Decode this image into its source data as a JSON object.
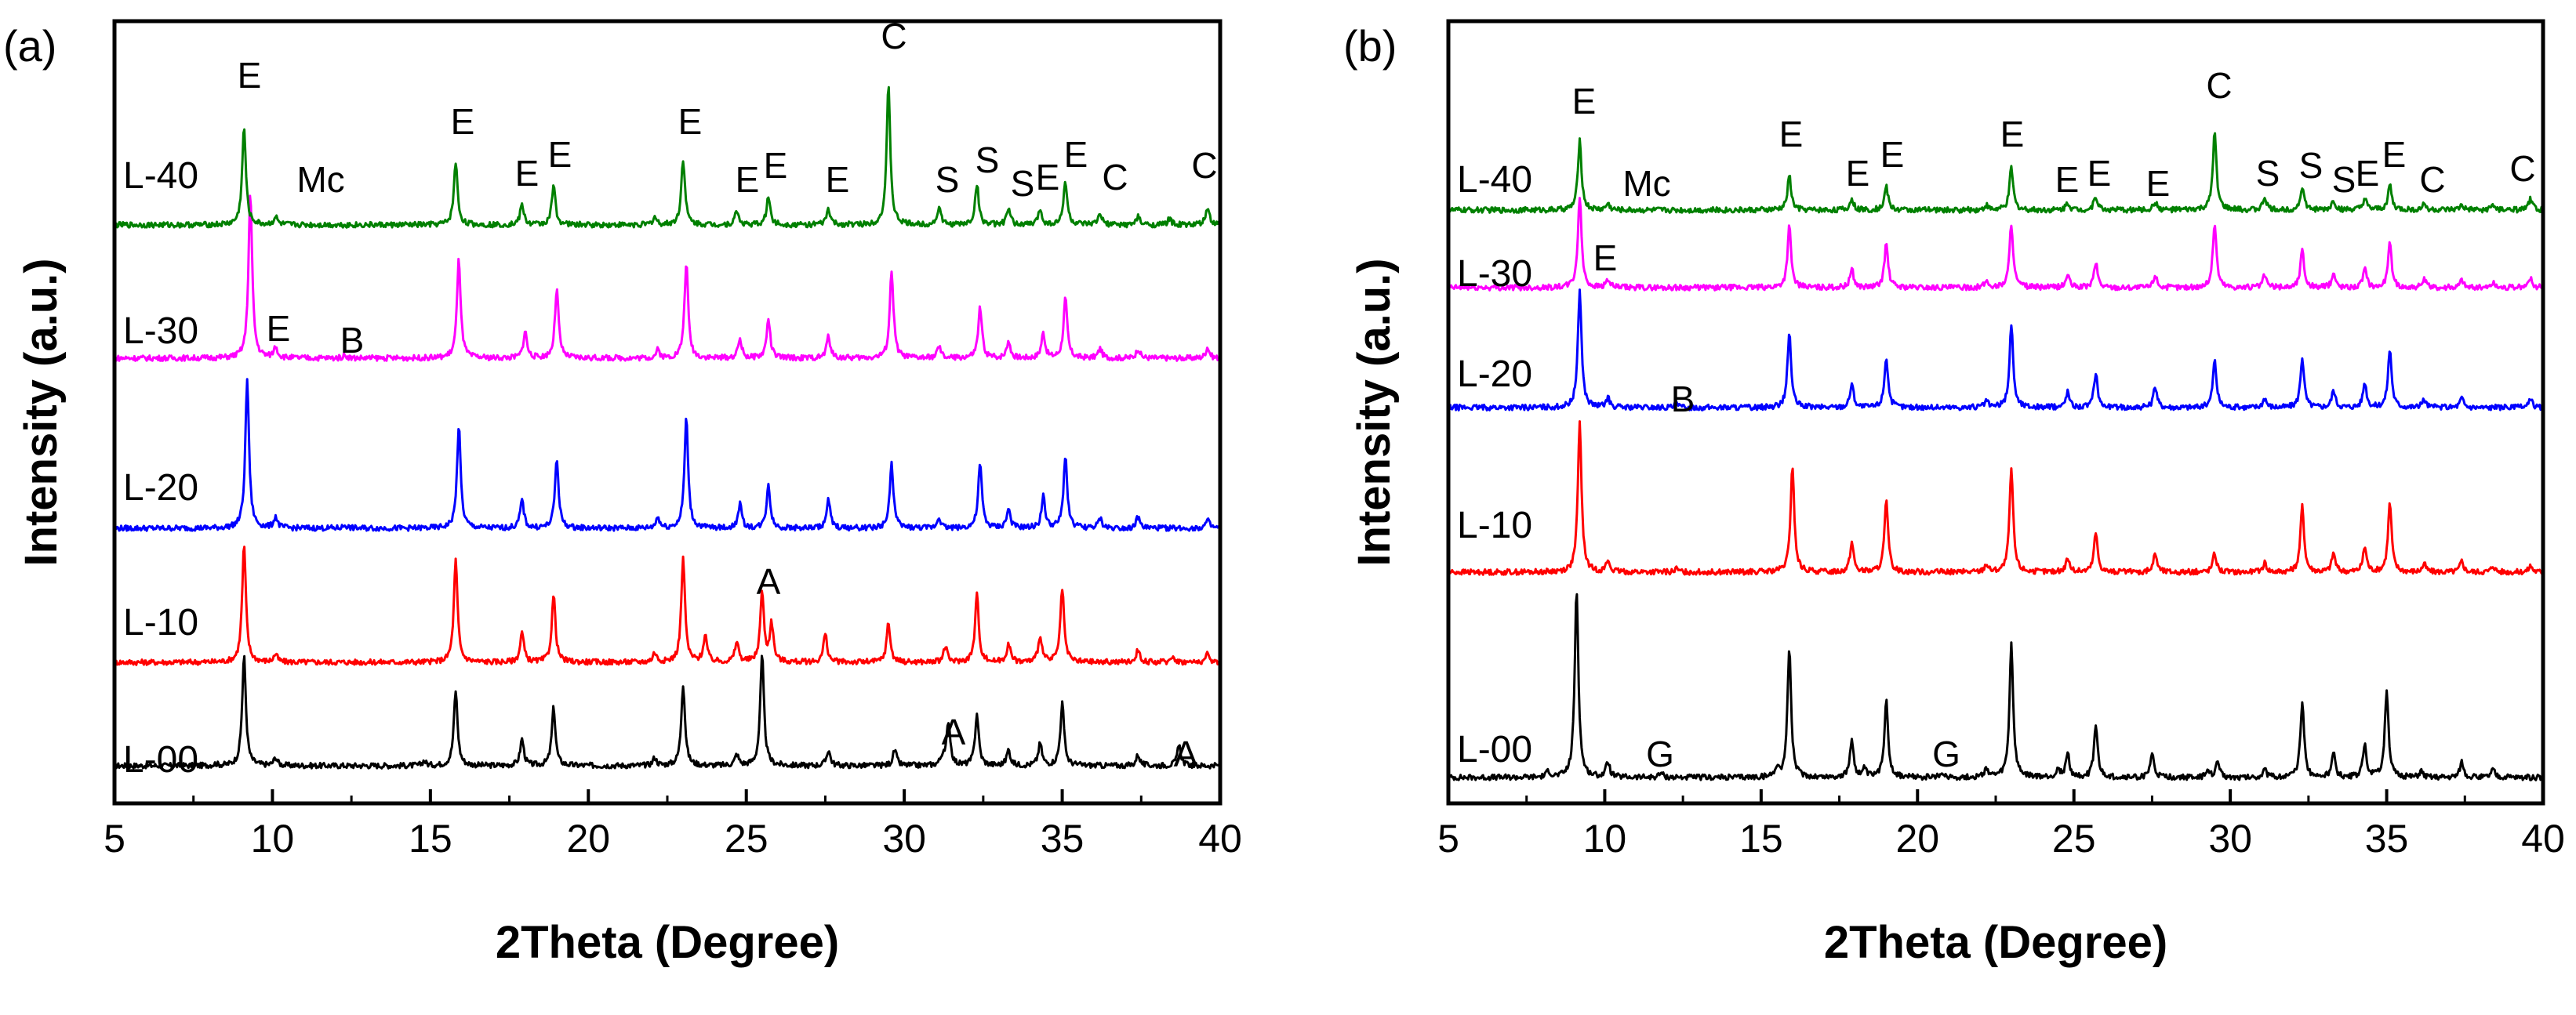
{
  "chart_data": [
    {
      "type": "line",
      "panel_label": "(a)",
      "xlabel": "2Theta (Degree)",
      "ylabel": "Intensity (a.u.)",
      "xlim": [
        5,
        40
      ],
      "x_ticks": [
        5,
        10,
        15,
        20,
        25,
        30,
        35,
        40
      ],
      "y_ticks": false,
      "grid": false,
      "legend": "none",
      "series": [
        {
          "name": "L-00",
          "color": "#000000",
          "baseline": 0.4,
          "peaks": [
            [
              8.2,
              0.1
            ],
            [
              9.1,
              7.0
            ],
            [
              10.1,
              0.5
            ],
            [
              14.8,
              0.3
            ],
            [
              15.8,
              4.8
            ],
            [
              17.9,
              1.7
            ],
            [
              18.9,
              3.7
            ],
            [
              22.1,
              0.5
            ],
            [
              23.0,
              5.2
            ],
            [
              24.7,
              0.7
            ],
            [
              25.5,
              7.0
            ],
            [
              27.6,
              1.0
            ],
            [
              29.7,
              1.0
            ],
            [
              31.2,
              0.5
            ],
            [
              31.4,
              2.8
            ],
            [
              32.3,
              3.3
            ],
            [
              33.3,
              1.0
            ],
            [
              34.3,
              1.4
            ],
            [
              35.0,
              4.0
            ],
            [
              37.4,
              0.7
            ],
            [
              38.7,
              1.3
            ]
          ]
        },
        {
          "name": "L-10",
          "color": "#ff0000",
          "baseline": 0.4,
          "peaks": [
            [
              9.1,
              7.5
            ],
            [
              10.1,
              0.5
            ],
            [
              15.8,
              6.5
            ],
            [
              17.9,
              1.9
            ],
            [
              18.9,
              4.3
            ],
            [
              22.1,
              0.6
            ],
            [
              23.0,
              6.6
            ],
            [
              23.7,
              1.7
            ],
            [
              24.7,
              1.3
            ],
            [
              25.5,
              4.4
            ],
            [
              25.8,
              2.4
            ],
            [
              27.5,
              1.8
            ],
            [
              29.5,
              2.5
            ],
            [
              31.3,
              1.0
            ],
            [
              32.3,
              4.3
            ],
            [
              33.3,
              1.2
            ],
            [
              34.3,
              1.7
            ],
            [
              35.0,
              4.7
            ],
            [
              37.4,
              0.8
            ],
            [
              38.5,
              0.4
            ],
            [
              39.6,
              0.5
            ]
          ]
        },
        {
          "name": "L-20",
          "color": "#0000ff",
          "baseline": 0.4,
          "peaks": [
            [
              9.2,
              9.5
            ],
            [
              10.1,
              0.7
            ],
            [
              12.3,
              0.2
            ],
            [
              15.9,
              6.5
            ],
            [
              17.9,
              1.8
            ],
            [
              19.0,
              4.4
            ],
            [
              22.2,
              0.7
            ],
            [
              23.1,
              7.0
            ],
            [
              24.8,
              1.5
            ],
            [
              25.7,
              2.8
            ],
            [
              27.6,
              1.8
            ],
            [
              29.6,
              4.1
            ],
            [
              31.1,
              0.7
            ],
            [
              32.4,
              4.1
            ],
            [
              33.3,
              1.2
            ],
            [
              34.4,
              2.0
            ],
            [
              35.1,
              4.6
            ],
            [
              36.2,
              0.6
            ],
            [
              37.4,
              0.7
            ],
            [
              39.6,
              0.5
            ]
          ]
        },
        {
          "name": "L-30",
          "color": "#ff00ff",
          "baseline": 0.4,
          "peaks": [
            [
              9.3,
              10.5
            ],
            [
              10.1,
              0.7
            ],
            [
              12.3,
              0.2
            ],
            [
              15.9,
              6.3
            ],
            [
              18.0,
              1.7
            ],
            [
              19.0,
              4.4
            ],
            [
              22.2,
              0.5
            ],
            [
              23.1,
              6.1
            ],
            [
              24.8,
              1.2
            ],
            [
              25.7,
              2.5
            ],
            [
              27.6,
              1.4
            ],
            [
              29.6,
              5.6
            ],
            [
              31.1,
              0.7
            ],
            [
              32.4,
              3.2
            ],
            [
              33.3,
              1.1
            ],
            [
              34.4,
              1.6
            ],
            [
              35.1,
              3.8
            ],
            [
              36.2,
              0.6
            ],
            [
              37.4,
              0.6
            ],
            [
              39.6,
              0.7
            ]
          ]
        },
        {
          "name": "L-40",
          "color": "#008000",
          "baseline": 0.4,
          "peaks": [
            [
              9.1,
              6.2
            ],
            [
              10.1,
              0.5
            ],
            [
              15.8,
              4.0
            ],
            [
              17.9,
              1.3
            ],
            [
              18.9,
              2.5
            ],
            [
              22.1,
              0.5
            ],
            [
              23.0,
              4.2
            ],
            [
              24.7,
              0.9
            ],
            [
              25.7,
              1.8
            ],
            [
              27.6,
              1.0
            ],
            [
              29.5,
              8.8
            ],
            [
              31.1,
              1.1
            ],
            [
              32.3,
              2.6
            ],
            [
              33.3,
              1.0
            ],
            [
              34.3,
              1.0
            ],
            [
              35.1,
              2.8
            ],
            [
              36.2,
              0.7
            ],
            [
              37.4,
              0.5
            ],
            [
              38.4,
              0.4
            ],
            [
              39.6,
              1.1
            ]
          ]
        }
      ],
      "peak_labels": [
        "E",
        "Mc",
        "E",
        "E",
        "E",
        "E",
        "E",
        "E",
        "E",
        "C",
        "S",
        "S",
        "S",
        "E",
        "E",
        "C",
        "C",
        "E",
        "B",
        "A",
        "A",
        "A"
      ]
    },
    {
      "type": "line",
      "panel_label": "(b)",
      "xlabel": "2Theta (Degree)",
      "ylabel": "Intensity (a.u.)",
      "xlim": [
        5,
        40
      ],
      "x_ticks": [
        5,
        10,
        15,
        20,
        25,
        30,
        35,
        40
      ],
      "y_ticks": false,
      "grid": false,
      "legend": "none",
      "series": [
        {
          "name": "L-00",
          "color": "#000000",
          "baseline": 0.5,
          "peaks": [
            [
              8.2,
              0.4
            ],
            [
              9.1,
              12.0
            ],
            [
              10.1,
              1.0
            ],
            [
              11.8,
              0.3
            ],
            [
              15.5,
              0.6
            ],
            [
              15.9,
              8.3
            ],
            [
              17.9,
              2.4
            ],
            [
              18.3,
              0.5
            ],
            [
              19.0,
              5.0
            ],
            [
              20.8,
              0.3
            ],
            [
              22.2,
              0.6
            ],
            [
              23.0,
              8.5
            ],
            [
              24.5,
              0.5
            ],
            [
              24.8,
              1.5
            ],
            [
              25.7,
              3.3
            ],
            [
              27.5,
              1.5
            ],
            [
              29.3,
              0.4
            ],
            [
              29.6,
              1.0
            ],
            [
              31.1,
              0.5
            ],
            [
              32.3,
              4.8
            ],
            [
              33.3,
              1.5
            ],
            [
              34.3,
              2.1
            ],
            [
              35.0,
              5.6
            ],
            [
              36.1,
              0.4
            ],
            [
              37.4,
              1.0
            ],
            [
              38.4,
              0.5
            ]
          ]
        },
        {
          "name": "L-10",
          "color": "#ff0000",
          "baseline": 0.4,
          "peaks": [
            [
              9.2,
              9.5
            ],
            [
              10.1,
              0.7
            ],
            [
              12.3,
              0.2
            ],
            [
              16.0,
              6.8
            ],
            [
              17.9,
              1.9
            ],
            [
              19.0,
              4.5
            ],
            [
              22.2,
              0.5
            ],
            [
              23.0,
              6.6
            ],
            [
              24.8,
              0.9
            ],
            [
              25.7,
              2.5
            ],
            [
              27.6,
              1.2
            ],
            [
              29.5,
              1.2
            ],
            [
              31.1,
              0.6
            ],
            [
              32.3,
              4.2
            ],
            [
              33.3,
              1.2
            ],
            [
              34.3,
              1.6
            ],
            [
              35.1,
              4.4
            ],
            [
              36.2,
              0.5
            ],
            [
              37.4,
              0.7
            ],
            [
              38.4,
              0.4
            ],
            [
              39.6,
              0.4
            ]
          ]
        },
        {
          "name": "L-20",
          "color": "#0000ff",
          "baseline": 0.4,
          "peaks": [
            [
              9.2,
              7.5
            ],
            [
              10.1,
              0.6
            ],
            [
              12.3,
              0.2
            ],
            [
              15.9,
              4.8
            ],
            [
              17.9,
              1.5
            ],
            [
              19.0,
              3.2
            ],
            [
              22.2,
              0.4
            ],
            [
              23.0,
              5.3
            ],
            [
              24.8,
              1.0
            ],
            [
              25.7,
              2.2
            ],
            [
              27.6,
              1.3
            ],
            [
              29.5,
              3.0
            ],
            [
              31.1,
              0.6
            ],
            [
              32.3,
              3.2
            ],
            [
              33.3,
              1.1
            ],
            [
              34.3,
              1.6
            ],
            [
              35.1,
              3.7
            ],
            [
              36.2,
              0.5
            ],
            [
              37.4,
              0.6
            ],
            [
              39.6,
              0.5
            ]
          ]
        },
        {
          "name": "L-30",
          "color": "#ff00ff",
          "baseline": 0.4,
          "peaks": [
            [
              9.2,
              5.8
            ],
            [
              10.1,
              0.5
            ],
            [
              15.9,
              3.9
            ],
            [
              17.9,
              1.2
            ],
            [
              19.0,
              2.8
            ],
            [
              22.2,
              0.4
            ],
            [
              23.0,
              4.1
            ],
            [
              24.8,
              0.8
            ],
            [
              25.7,
              1.6
            ],
            [
              27.6,
              0.8
            ],
            [
              29.5,
              4.1
            ],
            [
              31.1,
              0.8
            ],
            [
              32.3,
              2.4
            ],
            [
              33.3,
              0.9
            ],
            [
              34.3,
              1.2
            ],
            [
              35.1,
              2.8
            ],
            [
              36.2,
              0.5
            ],
            [
              37.4,
              0.5
            ],
            [
              38.4,
              0.3
            ],
            [
              39.6,
              0.6
            ]
          ]
        },
        {
          "name": "L-40",
          "color": "#008000",
          "baseline": 0.4,
          "peaks": [
            [
              9.2,
              4.4
            ],
            [
              10.1,
              0.4
            ],
            [
              15.9,
              2.2
            ],
            [
              17.9,
              0.7
            ],
            [
              19.0,
              1.5
            ],
            [
              22.2,
              0.3
            ],
            [
              23.0,
              2.7
            ],
            [
              24.8,
              0.5
            ],
            [
              25.7,
              0.9
            ],
            [
              27.6,
              0.5
            ],
            [
              29.5,
              4.9
            ],
            [
              31.1,
              0.8
            ],
            [
              32.3,
              1.5
            ],
            [
              33.3,
              0.6
            ],
            [
              34.3,
              0.7
            ],
            [
              35.1,
              1.6
            ],
            [
              36.2,
              0.4
            ],
            [
              37.4,
              0.3
            ],
            [
              38.4,
              0.3
            ],
            [
              39.6,
              0.7
            ]
          ]
        }
      ],
      "peak_labels": [
        "E",
        "Mc",
        "E",
        "E",
        "E",
        "E",
        "E",
        "E",
        "E",
        "C",
        "S",
        "S",
        "S",
        "E",
        "E",
        "C",
        "C",
        "E",
        "B",
        "G",
        "G"
      ]
    }
  ]
}
